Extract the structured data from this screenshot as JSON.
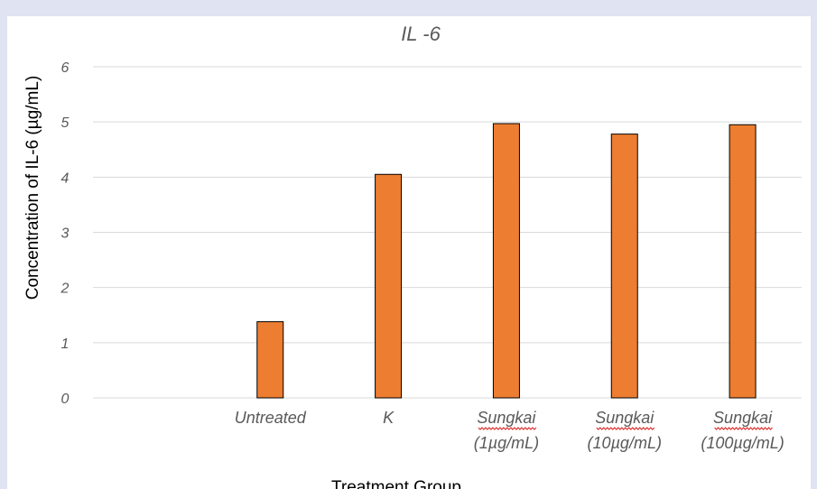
{
  "chart_data": {
    "type": "bar",
    "title": "IL -6",
    "xlabel": "Treatment Group",
    "ylabel": "Concentration of IL-6 (µg/mL)",
    "ylim": [
      0,
      6
    ],
    "yticks": [
      "0",
      "1",
      "2",
      "3",
      "4",
      "5",
      "6"
    ],
    "grid": true,
    "legend": "none",
    "categories": [
      {
        "line1": "",
        "line2": ""
      },
      {
        "line1": "Untreated",
        "line2": ""
      },
      {
        "line1": "K",
        "line2": ""
      },
      {
        "line1": "Sungkai",
        "line2": "(1µg/mL)"
      },
      {
        "line1": "Sungkai",
        "line2": "(10µg/mL)"
      },
      {
        "line1": "Sungkai",
        "line2": "(100µg/mL)"
      }
    ],
    "values": [
      null,
      1.38,
      4.05,
      4.97,
      4.78,
      4.95
    ],
    "bar_color": "#ed7d31",
    "bar_edge_color": "#000000",
    "grid_color": "#d9d9d9"
  }
}
